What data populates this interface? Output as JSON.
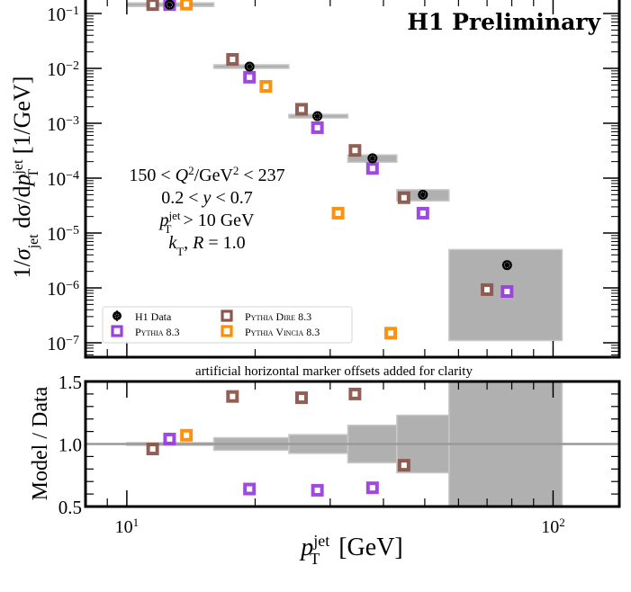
{
  "chart_data": [
    {
      "type": "scatter",
      "panel": "main",
      "title": "H1 Preliminary",
      "xlabel": "p_T^jet [GeV]",
      "ylabel": "1/σ_jet dσ/dp_T^jet [1/GeV]",
      "xscale": "log",
      "yscale": "log",
      "xlim": [
        8.0,
        143
      ],
      "ylim": [
        5e-08,
        0.18
      ],
      "ytick_labels": [
        "10^-1",
        "10^-2",
        "10^-3",
        "10^-4",
        "10^-5",
        "10^-6",
        "10^-7"
      ],
      "ytick_values": [
        0.1,
        0.01,
        0.001,
        0.0001,
        1e-05,
        1e-06,
        1e-07
      ],
      "annotations": [
        "150 < Q²/GeV² < 237",
        "0.2 < y < 0.7",
        "p_T^jet > 10 GeV",
        "k_T, R = 1.0"
      ],
      "legend_position": "lower-left",
      "bins": [
        [
          10,
          16
        ],
        [
          16,
          24
        ],
        [
          24,
          33
        ],
        [
          33,
          43
        ],
        [
          43,
          57
        ],
        [
          57,
          105
        ]
      ],
      "data": {
        "name": "H1 Data",
        "x": [
          12.6,
          19.4,
          28.0,
          37.7,
          49.5,
          78.0
        ],
        "y": [
          0.145,
          0.0108,
          0.00135,
          0.00023,
          5e-05,
          2.6e-06
        ],
        "band_low": [
          0.142,
          0.0103,
          0.00125,
          0.000195,
          3.85e-05,
          1.1e-07
        ],
        "band_high": [
          0.148,
          0.0113,
          0.00145,
          0.000265,
          6.15e-05,
          5e-06
        ]
      },
      "series": [
        {
          "name": "Pythia Dire 8.3",
          "color": "#8c564b",
          "x": [
            11.5,
            17.7,
            25.7,
            34.3,
            44.7,
            70.0
          ],
          "y": [
            0.145,
            0.0146,
            0.0018,
            0.00032,
            4.4e-05,
            9.3e-07
          ]
        },
        {
          "name": "Pythia 8.3",
          "color": "#9b3fe0",
          "x": [
            12.6,
            19.4,
            28.0,
            37.7,
            49.5,
            78.0
          ],
          "y": [
            0.145,
            0.0069,
            0.00083,
            0.00015,
            2.3e-05,
            8.6e-07
          ]
        },
        {
          "name": "Pythia Vincia 8.3",
          "color": "#ff8c00",
          "x": [
            13.8,
            21.2,
            31.3,
            41.6
          ],
          "y": [
            0.148,
            0.0047,
            2.3e-05,
            1.5e-07
          ]
        }
      ],
      "legend": [
        "H1 Data",
        "Pythia 8.3",
        "Pythia Dire 8.3",
        "Pythia Vincia 8.3"
      ]
    },
    {
      "type": "scatter",
      "panel": "ratio",
      "title": "artificial horizontal marker offsets added for clarity",
      "xlabel": "p_T^jet [GeV]",
      "ylabel": "Model / Data",
      "xscale": "log",
      "xlim": [
        8.0,
        143
      ],
      "ylim": [
        0.5,
        1.5
      ],
      "ytick_labels": [
        "1.5",
        "1.0",
        "0.5"
      ],
      "ytick_values": [
        1.5,
        1.0,
        0.5
      ],
      "xtick_labels": [
        "10^1",
        "10^2"
      ],
      "xtick_values": [
        10,
        100
      ],
      "bins": [
        [
          10,
          16
        ],
        [
          16,
          24
        ],
        [
          24,
          33
        ],
        [
          33,
          43
        ],
        [
          43,
          57
        ],
        [
          57,
          105
        ]
      ],
      "band_halfwidth": [
        0.005,
        0.05,
        0.075,
        0.15,
        0.23,
        1.0
      ],
      "series": [
        {
          "name": "Pythia Dire 8.3",
          "color": "#8c564b",
          "x": [
            11.5,
            17.7,
            25.7,
            34.3,
            44.7
          ],
          "y": [
            0.96,
            1.38,
            1.37,
            1.4,
            0.83
          ]
        },
        {
          "name": "Pythia 8.3",
          "color": "#9b3fe0",
          "x": [
            12.6,
            19.4,
            28.0,
            37.7
          ],
          "y": [
            1.04,
            0.64,
            0.63,
            0.65
          ]
        },
        {
          "name": "Pythia Vincia 8.3",
          "color": "#ff8c00",
          "x": [
            13.8
          ],
          "y": [
            1.07
          ]
        }
      ]
    }
  ],
  "labels": {
    "title": "H1 Preliminary",
    "note": "artificial horizontal marker offsets added for clarity",
    "ann1a": "150 < ",
    "ann1b": "Q",
    "ann1c": "2",
    "ann1d": "/GeV",
    "ann1e": "2",
    "ann1f": " < 237",
    "ann2a": "0.2 < ",
    "ann2b": "y",
    "ann2c": " < 0.7",
    "ann3a": "p",
    "ann3b": "jet",
    "ann3c": "T",
    "ann3d": " > 10 GeV",
    "ann4a": "k",
    "ann4b": "T",
    "ann4c": ", ",
    "ann4d": "R",
    "ann4e": " = 1.0",
    "ratio_ylabel": "Model / Data",
    "xlabel_p": "p",
    "xlabel_sup": "jet",
    "xlabel_sub": "T",
    "xlabel_unit": " [GeV]",
    "ylabel_1": "1/",
    "ylabel_sigma": "σ",
    "ylabel_jet": "jet",
    "ylabel_d": " dσ/d",
    "ylabel_p": "p",
    "ylabel_sup": "jet",
    "ylabel_sub": "T",
    "ylabel_unit": " [1/GeV]",
    "legend_h1": "H1 Data",
    "legend_p83": "Pythia 8.3",
    "legend_dire": "Pythia Dire 8.3",
    "legend_vincia": "Pythia Vincia 8.3"
  }
}
